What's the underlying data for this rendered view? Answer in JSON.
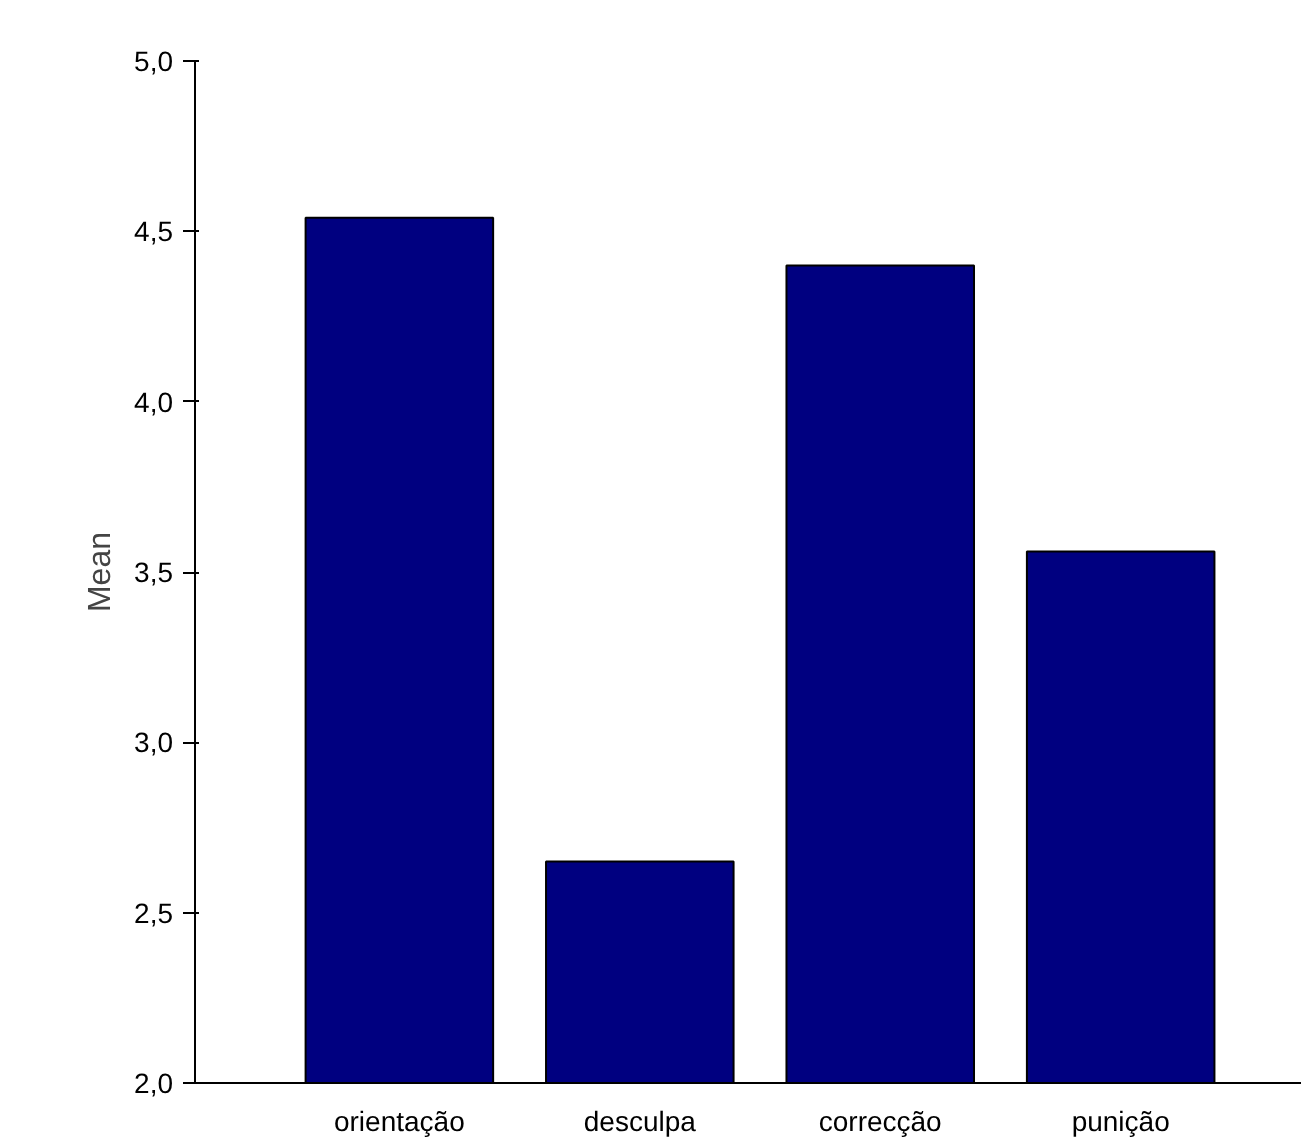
{
  "chart_data": {
    "type": "bar",
    "ylabel": "Mean",
    "categories": [
      "orientação",
      "desculpa",
      "correcção",
      "punição"
    ],
    "values": [
      4.54,
      2.65,
      4.4,
      3.56
    ],
    "color": "#000080",
    "ylim": [
      2,
      5
    ],
    "yticks": [
      {
        "value": 2,
        "label": "2,0"
      },
      {
        "value": 2.5,
        "label": "2,5"
      },
      {
        "value": 3,
        "label": "3,0"
      },
      {
        "value": 3.5,
        "label": "3,5"
      },
      {
        "value": 4,
        "label": "4,0"
      },
      {
        "value": 4.5,
        "label": "4,5"
      },
      {
        "value": 5,
        "label": "5,0"
      }
    ],
    "grid": false
  }
}
